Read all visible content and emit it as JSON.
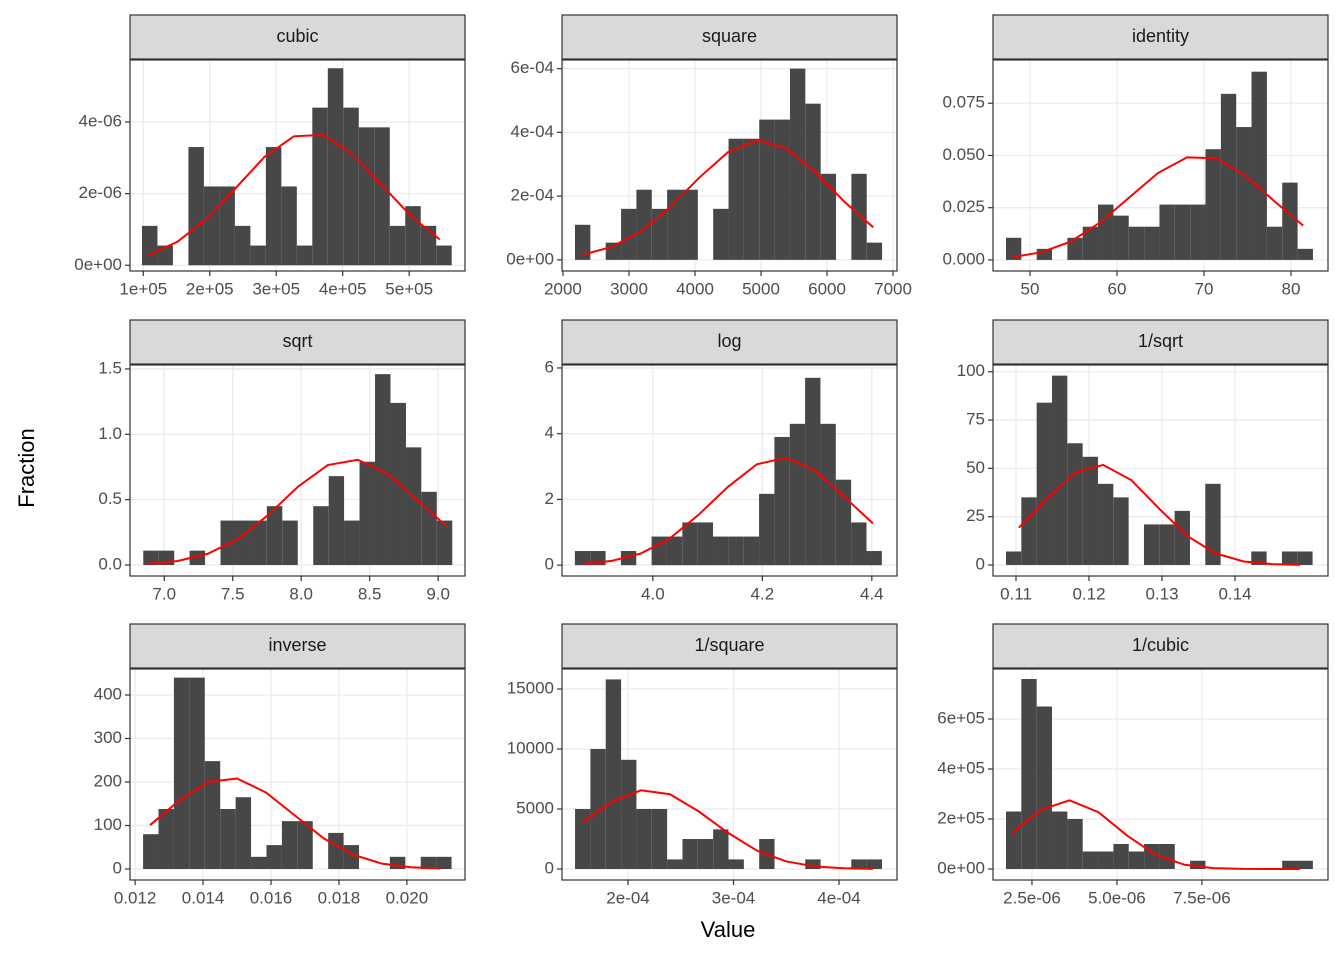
{
  "xlabel": "Value",
  "ylabel": "Fraction",
  "chart_data": [
    {
      "type": "histogram",
      "title": "cubic",
      "color": "#474747",
      "grid": true,
      "bins": [
        98000,
        121300,
        144600,
        167900,
        191200,
        214500,
        237800,
        261100,
        284400,
        307700,
        331000,
        354300,
        377600,
        400900,
        424200,
        447500,
        470800,
        494100,
        517400,
        540700,
        564000
      ],
      "counts": [
        1.1e-06,
        5.5e-07,
        0,
        3.3e-06,
        2.2e-06,
        2.2e-06,
        1.1e-06,
        5.5e-07,
        3.3e-06,
        2.2e-06,
        5.5e-07,
        4.4e-06,
        5.5e-06,
        4.4e-06,
        3.85e-06,
        3.85e-06,
        1.1e-06,
        1.65e-06,
        1.1e-06,
        5.5e-07
      ],
      "curve": {
        "color": "#ff0000",
        "x": [
          107000,
          150900,
          194800,
          238700,
          282600,
          326500,
          370400,
          414300,
          458200,
          502100,
          546000
        ],
        "values": [
          2.9e-07,
          6.5e-07,
          1.29e-06,
          2.15e-06,
          3.03e-06,
          3.6e-06,
          3.64e-06,
          3.11e-06,
          2.25e-06,
          1.39e-06,
          7.2e-07
        ]
      },
      "xlim": [
        80000,
        584000
      ],
      "ylim": [
        -1.6e-07,
        5.73e-06
      ],
      "xticks": [
        {
          "value": 100000,
          "label": "1e+05"
        },
        {
          "value": 200000,
          "label": "2e+05"
        },
        {
          "value": 300000,
          "label": "3e+05"
        },
        {
          "value": 400000,
          "label": "4e+05"
        },
        {
          "value": 500000,
          "label": "5e+05"
        }
      ],
      "yticks": [
        {
          "value": 0,
          "label": "0e+00"
        },
        {
          "value": 2e-06,
          "label": "2e-06"
        },
        {
          "value": 4e-06,
          "label": "4e-06"
        }
      ]
    },
    {
      "type": "histogram",
      "title": "square",
      "color": "#474747",
      "grid": true,
      "bins": [
        2182,
        2414.6,
        2647.2,
        2879.8,
        3112.4,
        3345,
        3577.6,
        3810.2,
        4042.8,
        4275.4,
        4508,
        4740.6,
        4973.2,
        5205.8,
        5438.4,
        5671,
        5903.6,
        6136.2,
        6368.8,
        6601.4,
        6834
      ],
      "counts": [
        0.00011,
        0,
        5.4e-05,
        0.00016,
        0.00022,
        0.00016,
        0.00022,
        0.00022,
        0,
        0.00016,
        0.00038,
        0.00038,
        0.00044,
        0.00044,
        0.0006,
        0.00049,
        0.00027,
        0,
        0.00027,
        5.4e-05
      ],
      "curve": {
        "color": "#ff0000",
        "x": [
          2300,
          2740,
          3180,
          3620,
          4060,
          4500,
          4940,
          5380,
          5820,
          6260,
          6700
        ],
        "values": [
          1.6e-05,
          4.1e-05,
          8.9e-05,
          0.000165,
          0.000257,
          0.000338,
          0.000375,
          0.00035,
          0.000276,
          0.000183,
          0.000102
        ]
      },
      "xlim": [
        1985,
        7060
      ],
      "ylim": [
        -3.5e-05,
        0.000627
      ],
      "xticks": [
        2000,
        3000,
        4000,
        5000,
        6000,
        7000
      ],
      "yticks": [
        {
          "value": 0,
          "label": "0e+00"
        },
        {
          "value": 0.0002,
          "label": "2e-04"
        },
        {
          "value": 0.0004,
          "label": "4e-04"
        },
        {
          "value": 0.0006,
          "label": "6e-04"
        }
      ]
    },
    {
      "type": "histogram",
      "title": "identity",
      "color": "#474747",
      "grid": true,
      "bins": [
        47.24,
        49.0,
        50.77,
        52.53,
        54.3,
        56.06,
        57.82,
        59.59,
        61.35,
        63.12,
        64.88,
        66.64,
        68.41,
        70.17,
        71.94,
        73.7,
        75.46,
        77.23,
        78.99,
        80.76,
        82.52
      ],
      "counts": [
        0.0106,
        0,
        0.0053,
        0,
        0.0106,
        0.0159,
        0.0265,
        0.0212,
        0.0159,
        0.0159,
        0.0265,
        0.0265,
        0.0265,
        0.053,
        0.0795,
        0.0636,
        0.0901,
        0.0159,
        0.037,
        0.0053
      ],
      "curve": {
        "color": "#ff0000",
        "x": [
          48,
          51.34,
          54.68,
          58.02,
          61.36,
          64.7,
          68.04,
          71.38,
          74.72,
          78.06,
          81.4
        ],
        "values": [
          0.0013,
          0.0037,
          0.0088,
          0.0178,
          0.0297,
          0.0416,
          0.0491,
          0.0487,
          0.0405,
          0.0282,
          0.0164
        ]
      },
      "xlim": [
        45.75,
        84.25
      ],
      "ylim": [
        -0.0053,
        0.0957
      ],
      "xticks": [
        50,
        60,
        70,
        80
      ],
      "yticks": [
        {
          "value": 0,
          "label": "0.000"
        },
        0.025,
        {
          "value": 0.05,
          "label": "0.050"
        },
        0.075
      ]
    },
    {
      "type": "histogram",
      "title": "sqrt",
      "color": "#474747",
      "grid": true,
      "bins": [
        6.847,
        6.96,
        7.073,
        7.185,
        7.298,
        7.411,
        7.524,
        7.637,
        7.749,
        7.862,
        7.975,
        8.088,
        8.201,
        8.313,
        8.426,
        8.539,
        8.652,
        8.765,
        8.877,
        8.99,
        9.103
      ],
      "counts": [
        0.11,
        0.11,
        0,
        0.11,
        0,
        0.34,
        0.34,
        0.34,
        0.45,
        0.34,
        0,
        0.45,
        0.68,
        0.34,
        0.79,
        1.46,
        1.24,
        0.9,
        0.56,
        0.34
      ],
      "curve": {
        "color": "#ff0000",
        "x": [
          6.88,
          7.099,
          7.318,
          7.537,
          7.756,
          7.975,
          8.194,
          8.413,
          8.632,
          8.851,
          9.07
        ],
        "values": [
          0.009,
          0.031,
          0.086,
          0.198,
          0.38,
          0.598,
          0.765,
          0.805,
          0.697,
          0.492,
          0.288
        ]
      },
      "xlim": [
        6.75,
        9.196
      ],
      "ylim": [
        -0.084,
        1.53
      ],
      "xticks": [
        {
          "value": 7,
          "label": "7.0"
        },
        7.5,
        {
          "value": 8,
          "label": "8.0"
        },
        8.5,
        {
          "value": 9,
          "label": "9.0"
        }
      ],
      "yticks": [
        {
          "value": 0,
          "label": "0.0"
        },
        0.5,
        {
          "value": 1,
          "label": "1.0"
        },
        1.5
      ]
    },
    {
      "type": "histogram",
      "title": "log",
      "color": "#474747",
      "grid": true,
      "bins": [
        3.8575,
        3.8855,
        3.9136,
        3.9416,
        3.9697,
        3.9977,
        4.0257,
        4.0538,
        4.0818,
        4.1099,
        4.1379,
        4.1659,
        4.194,
        4.222,
        4.2501,
        4.2781,
        4.3061,
        4.3342,
        4.3622,
        4.3903,
        4.4183
      ],
      "counts": [
        0.43,
        0.43,
        0,
        0.43,
        0,
        0.87,
        0.87,
        1.3,
        1.3,
        0.87,
        0.87,
        0.87,
        2.17,
        3.9,
        4.3,
        5.7,
        4.3,
        2.6,
        1.3,
        0.43
      ],
      "curve": {
        "color": "#ff0000",
        "x": [
          3.872,
          3.925,
          3.978,
          4.031,
          4.084,
          4.137,
          4.19,
          4.243,
          4.296,
          4.349,
          4.402
        ],
        "values": [
          0.039,
          0.131,
          0.354,
          0.813,
          1.54,
          2.38,
          3.07,
          3.27,
          2.88,
          2.09,
          1.27
        ]
      },
      "xlim": [
        3.834,
        4.446
      ],
      "ylim": [
        -0.33,
        6.09
      ],
      "xticks": [
        {
          "value": 4,
          "label": "4.0"
        },
        4.2,
        4.4
      ],
      "yticks": [
        0,
        2,
        4,
        6
      ]
    },
    {
      "type": "histogram",
      "title": "1/sqrt",
      "color": "#474747",
      "grid": true,
      "bins": [
        0.10863,
        0.11073,
        0.11283,
        0.11493,
        0.11703,
        0.11913,
        0.12123,
        0.12333,
        0.12543,
        0.12753,
        0.12963,
        0.13173,
        0.13383,
        0.13593,
        0.13803,
        0.14013,
        0.14223,
        0.14433,
        0.14643,
        0.14853,
        0.15063
      ],
      "counts": [
        7,
        35,
        84,
        98,
        63,
        56,
        42,
        35,
        0,
        21,
        21,
        28,
        0,
        42,
        0,
        0,
        7,
        0,
        7,
        7
      ],
      "curve": {
        "color": "#ff0000",
        "x": [
          0.1104,
          0.11425,
          0.1181,
          0.12195,
          0.1258,
          0.12965,
          0.1335,
          0.13735,
          0.1412,
          0.14505,
          0.1489
        ],
        "values": [
          19.3,
          34.4,
          47.8,
          51.8,
          43.9,
          29,
          14.9,
          6.0,
          1.8,
          0.44,
          0.08
        ]
      },
      "xlim": [
        0.10685,
        0.15274
      ],
      "ylim": [
        -5.7,
        103.5
      ],
      "xticks": [
        0.11,
        0.12,
        0.13,
        0.14
      ],
      "yticks": [
        0,
        25,
        50,
        75,
        100
      ]
    },
    {
      "type": "histogram",
      "title": "inverse",
      "color": "#474747",
      "grid": true,
      "bins": [
        0.012235,
        0.012689,
        0.013143,
        0.013597,
        0.014051,
        0.014505,
        0.014959,
        0.015413,
        0.015867,
        0.016321,
        0.016775,
        0.017229,
        0.017683,
        0.018137,
        0.018591,
        0.019045,
        0.019499,
        0.019953,
        0.020407,
        0.020861,
        0.021315
      ],
      "counts": [
        80,
        138,
        440,
        440,
        248,
        138,
        165,
        28,
        55,
        110,
        110,
        0,
        83,
        55,
        0,
        0,
        28,
        0,
        28,
        28
      ],
      "curve": {
        "color": "#ff0000",
        "x": [
          0.01244,
          0.013293,
          0.014146,
          0.014999,
          0.015852,
          0.016705,
          0.017558,
          0.018411,
          0.019264,
          0.020117,
          0.02097
        ],
        "values": [
          101,
          157,
          200,
          208,
          176,
          123,
          70,
          33,
          12.4,
          3.9,
          1.0
        ]
      },
      "xlim": [
        0.01185,
        0.02171
      ],
      "ylim": [
        -25.3,
        459.8
      ],
      "xticks": [
        0.012,
        0.014,
        0.016,
        0.018,
        {
          "value": 0.02,
          "label": "0.020"
        }
      ],
      "yticks": [
        0,
        100,
        200,
        300,
        400
      ]
    },
    {
      "type": "histogram",
      "title": "1/square",
      "color": "#474747",
      "grid": true,
      "bins": [
        0.00014976,
        0.00016431,
        0.00017886,
        0.00019341,
        0.00020796,
        0.00022251,
        0.00023706,
        0.00025161,
        0.00026616,
        0.00028071,
        0.00029526,
        0.00030981,
        0.00032436,
        0.00033891,
        0.00035346,
        0.00036801,
        0.00038256,
        0.00039711,
        0.00041166,
        0.00042621,
        0.00044076
      ],
      "counts": [
        5000,
        10000,
        15800,
        9100,
        5000,
        5000,
        800,
        2500,
        2500,
        3300,
        800,
        0,
        2500,
        0,
        0,
        800,
        0,
        0,
        800,
        800
      ],
      "curve": {
        "color": "#ff0000",
        "x": [
          0.0001573,
          0.0001848,
          0.0002123,
          0.0002398,
          0.0002672,
          0.0002947,
          0.0003222,
          0.0003497,
          0.0003772,
          0.0004047,
          0.0004322
        ],
        "values": [
          3920,
          5610,
          6560,
          6230,
          4790,
          3020,
          1530,
          640,
          211,
          59,
          13
        ]
      },
      "xlim": [
        0.0001374,
        0.000455
      ],
      "ylim": [
        -917,
        16667
      ],
      "xticks": [
        {
          "value": 0.0002,
          "label": "2e-04"
        },
        {
          "value": 0.0003,
          "label": "3e-04"
        },
        {
          "value": 0.0004,
          "label": "4e-04"
        }
      ],
      "yticks": [
        0,
        5000,
        10000,
        15000
      ]
    },
    {
      "type": "histogram",
      "title": "1/cubic",
      "color": "#474747",
      "grid": true,
      "bins": [
        1.735e-06,
        2.1865e-06,
        2.638e-06,
        3.0895e-06,
        3.541e-06,
        3.9925e-06,
        4.444e-06,
        4.8955e-06,
        5.347e-06,
        5.7985e-06,
        6.25e-06,
        6.7015e-06,
        7.153e-06,
        7.6045e-06,
        8.056e-06,
        8.5075e-06,
        8.959e-06,
        9.4105e-06,
        9.862e-06,
        1.03135e-05,
        1.0765e-05
      ],
      "counts": [
        230000,
        760000,
        650000,
        230000,
        200000,
        70000,
        70000,
        100000,
        70000,
        100000,
        100000,
        0,
        33000,
        0,
        0,
        0,
        0,
        0,
        33000,
        33000
      ],
      "curve": {
        "color": "#ff0000",
        "x": [
          1.912e-06,
          2.759e-06,
          3.605e-06,
          4.452e-06,
          5.299e-06,
          6.146e-06,
          6.993e-06,
          7.839e-06,
          8.686e-06,
          9.533e-06,
          1.038e-05
        ],
        "values": [
          144400,
          236200,
          274700,
          227700,
          133900,
          56100,
          16800,
          3550,
          520,
          55,
          4
        ]
      },
      "xlim": [
        1.353e-06,
        1.121e-05
      ],
      "ylim": [
        -44000,
        800000
      ],
      "xticks": [
        {
          "value": 2.5e-06,
          "label": "2.5e-06"
        },
        {
          "value": 5e-06,
          "label": "5.0e-06"
        },
        {
          "value": 7.5e-06,
          "label": "7.5e-06"
        }
      ],
      "yticks": [
        {
          "value": 0,
          "label": "0e+00"
        },
        {
          "value": 200000,
          "label": "2e+05"
        },
        {
          "value": 400000,
          "label": "4e+05"
        },
        {
          "value": 600000,
          "label": "6e+05"
        }
      ]
    }
  ]
}
